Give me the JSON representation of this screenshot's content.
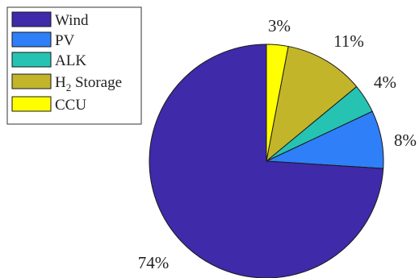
{
  "chart_data": {
    "type": "pie",
    "title": "",
    "legend_position": "top-left",
    "slices": [
      {
        "label": "CCU",
        "value": 3,
        "value_label": "3%",
        "color": "#ffff00"
      },
      {
        "label": "H2 Storage",
        "label_main": "H",
        "label_sub": "2",
        "label_rest": " Storage",
        "value": 11,
        "value_label": "11%",
        "color": "#c2b52a"
      },
      {
        "label": "ALK",
        "value": 4,
        "value_label": "4%",
        "color": "#26c3b3"
      },
      {
        "label": "PV",
        "value": 8,
        "value_label": "8%",
        "color": "#2f7ff8"
      },
      {
        "label": "Wind",
        "value": 74,
        "value_label": "74%",
        "color": "#3f2aa9"
      }
    ],
    "legend_order": [
      "Wind",
      "PV",
      "ALK",
      "H2 Storage",
      "CCU"
    ]
  }
}
